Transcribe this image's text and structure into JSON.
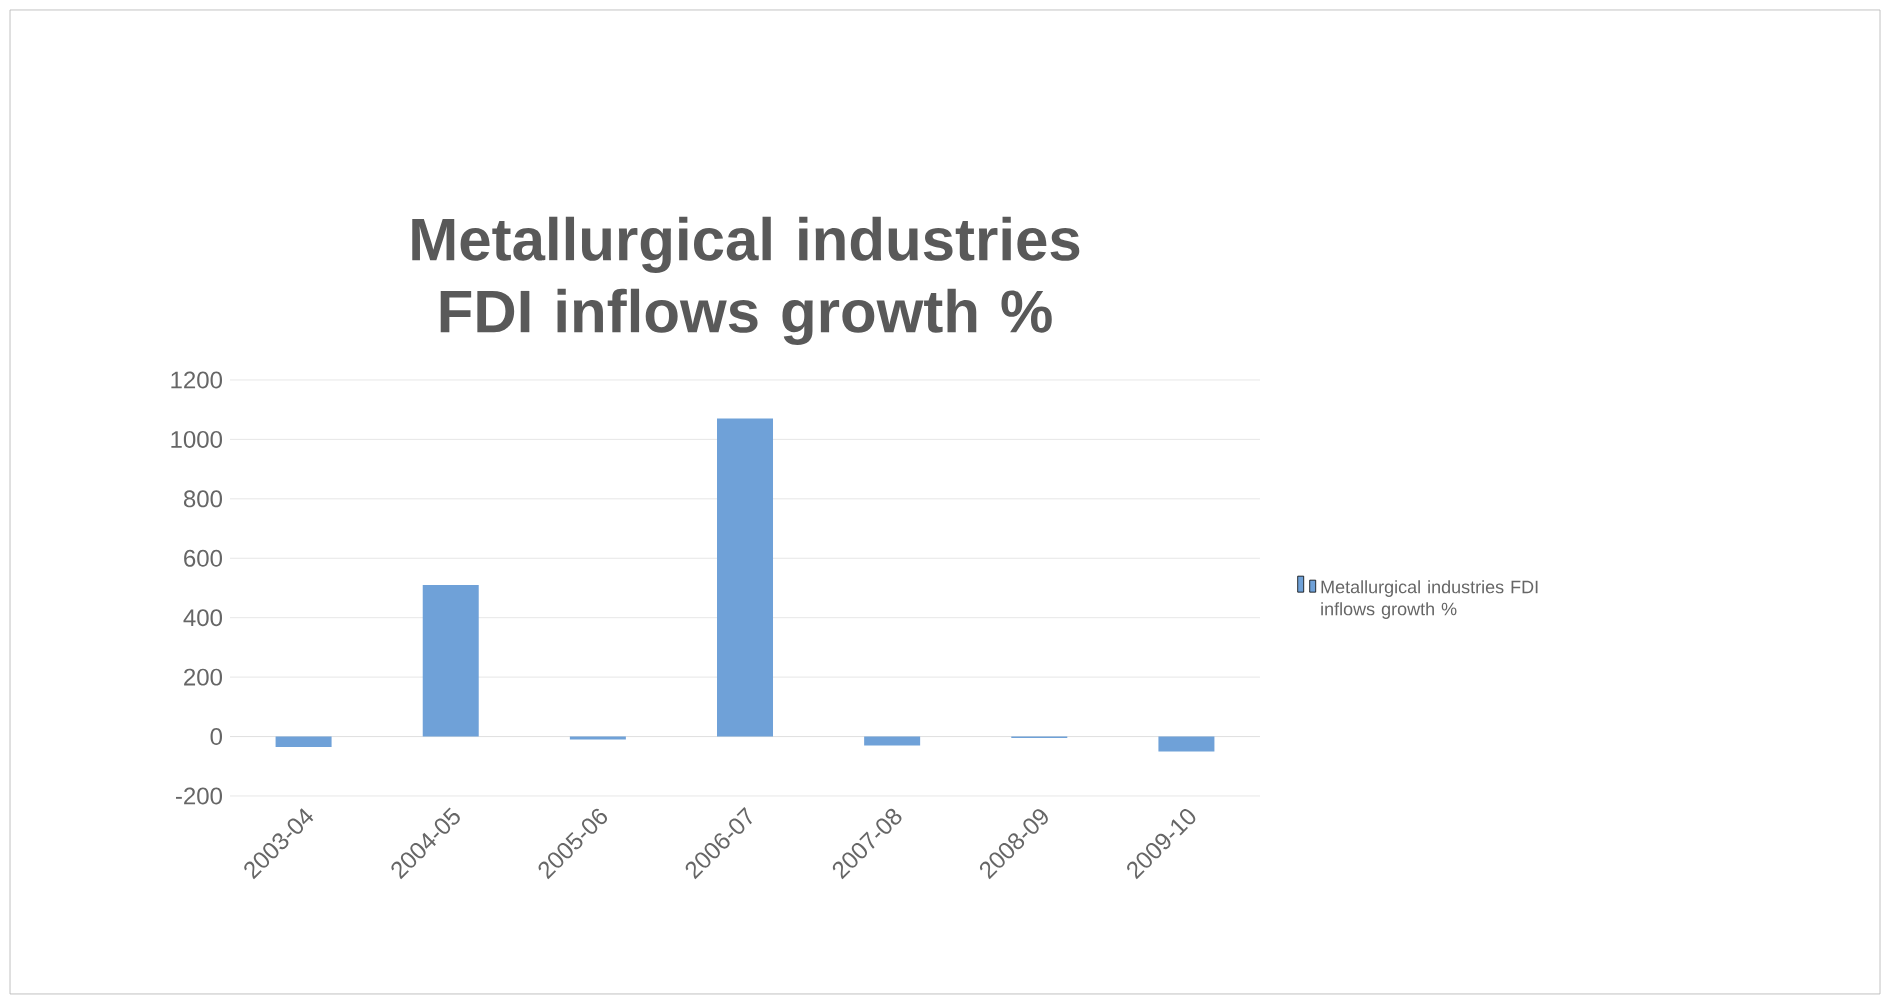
{
  "chart_data": {
    "type": "bar",
    "title": "Metallurgical industries FDI inflows growth %",
    "categories": [
      "2003-04",
      "2004-05",
      "2005-06",
      "2006-07",
      "2007-08",
      "2008-09",
      "2009-10"
    ],
    "series": [
      {
        "name": "Metallurgical industries FDI inflows growth %",
        "color": "#6fa1d8",
        "values": [
          -35,
          510,
          -10,
          1070,
          -30,
          -5,
          -50
        ]
      }
    ],
    "ylim": [
      -200,
      1200
    ],
    "yticks": [
      -200,
      0,
      200,
      400,
      600,
      800,
      1000,
      1200
    ],
    "grid": "y",
    "legend": "right"
  }
}
